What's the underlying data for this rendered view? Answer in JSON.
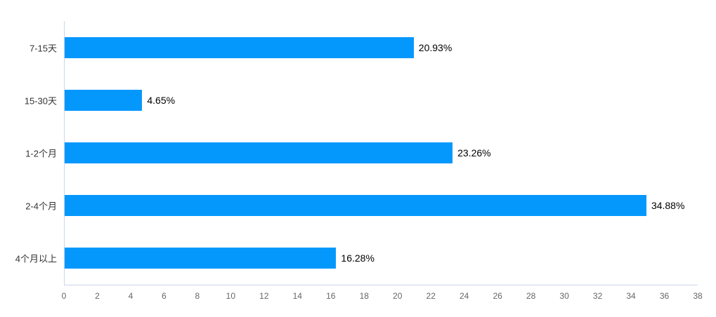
{
  "chart_data": {
    "type": "bar",
    "orientation": "horizontal",
    "title": "",
    "xlabel": "",
    "ylabel": "",
    "categories": [
      "7-15天",
      "15-30天",
      "1-2个月",
      "2-4个月",
      "4个月以上"
    ],
    "values": [
      20.93,
      4.65,
      23.26,
      34.88,
      16.28
    ],
    "value_labels": [
      "20.93%",
      "4.65%",
      "23.26%",
      "34.88%",
      "16.28%"
    ],
    "xlim": [
      0,
      38
    ],
    "x_ticks": [
      0,
      2,
      4,
      6,
      8,
      10,
      12,
      14,
      16,
      18,
      20,
      22,
      24,
      26,
      28,
      30,
      32,
      34,
      36,
      38
    ],
    "grid": false,
    "legend": false,
    "colors": {
      "bar": "#0598fc",
      "axis_line": "#ccd6eb",
      "category_label": "#333333",
      "value_label": "#000000",
      "tick_label": "#666666",
      "background": "#ffffff"
    }
  }
}
